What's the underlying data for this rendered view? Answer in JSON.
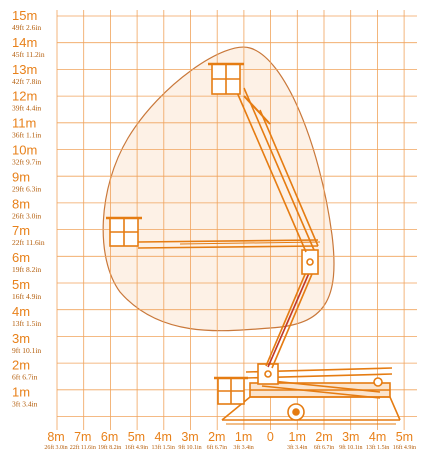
{
  "colors": {
    "grid": "#f0a35c",
    "label_meter": "#e8811a",
    "label_feet": "#b35c0a",
    "envelope_fill": "#fdf1e6",
    "envelope_stroke": "#c9783a",
    "machine": "#e57c12",
    "boom_red": "#c0392b"
  },
  "y_axis": {
    "labels": [
      {
        "m": "15m",
        "ft": "49ft 2.6in"
      },
      {
        "m": "14m",
        "ft": "45ft 11.2in"
      },
      {
        "m": "13m",
        "ft": "42ft 7.8in"
      },
      {
        "m": "12m",
        "ft": "39ft 4.4in"
      },
      {
        "m": "11m",
        "ft": "36ft 1.1in"
      },
      {
        "m": "10m",
        "ft": "32ft 9.7in"
      },
      {
        "m": "9m",
        "ft": "29ft 6.3in"
      },
      {
        "m": "8m",
        "ft": "26ft 3.0in"
      },
      {
        "m": "7m",
        "ft": "22ft 11.6in"
      },
      {
        "m": "6m",
        "ft": "19ft 8.2in"
      },
      {
        "m": "5m",
        "ft": "16ft 4.9in"
      },
      {
        "m": "4m",
        "ft": "13ft 1.5in"
      },
      {
        "m": "3m",
        "ft": "9ft 10.1in"
      },
      {
        "m": "2m",
        "ft": "6ft 6.7in"
      },
      {
        "m": "1m",
        "ft": "3ft 3.4in"
      }
    ]
  },
  "x_axis": {
    "labels": [
      {
        "m": "8m",
        "ft": "26ft 3.0in"
      },
      {
        "m": "7m",
        "ft": "22ft 11.6in"
      },
      {
        "m": "6m",
        "ft": "19ft 8.2in"
      },
      {
        "m": "5m",
        "ft": "16ft 4.9in"
      },
      {
        "m": "4m",
        "ft": "13ft 1.5in"
      },
      {
        "m": "3m",
        "ft": "9ft 10.1in"
      },
      {
        "m": "2m",
        "ft": "6ft 6.7in"
      },
      {
        "m": "1m",
        "ft": "3ft 3.4in"
      },
      {
        "m": "0",
        "ft": ""
      },
      {
        "m": "1m",
        "ft": "3ft 3.4in"
      },
      {
        "m": "2m",
        "ft": "6ft 6.7in"
      },
      {
        "m": "3m",
        "ft": "9ft 10.1in"
      },
      {
        "m": "4m",
        "ft": "13ft 1.5in"
      },
      {
        "m": "5m",
        "ft": "16ft 4.9in"
      }
    ]
  },
  "icons": {
    "envelope": "working-envelope-shape",
    "machine": "articulated-boom-lift-icon"
  }
}
